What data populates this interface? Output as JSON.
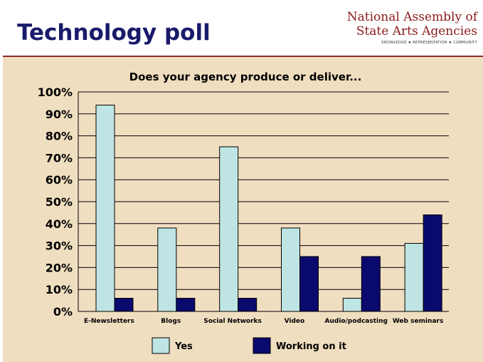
{
  "slide": {
    "title": "Technology poll",
    "logo_line1": "National Assembly of",
    "logo_line2": "State Arts Agencies",
    "logo_tagline": "KNOWLEDGE ♦ REPRESENTATION ♦ COMMUNITY"
  },
  "colors": {
    "yes": "#bfe4e4",
    "working": "#0a0a6e",
    "background": "#f0dec0",
    "title": "#1a1a6b",
    "logo": "#8b1a1a"
  },
  "chart_data": {
    "type": "bar",
    "title": "Does your agency produce or deliver...",
    "categories": [
      "E-Newsletters",
      "Blogs",
      "Social Networks",
      "Video",
      "Audio/podcasting",
      "Web seminars"
    ],
    "series": [
      {
        "name": "Yes",
        "values": [
          94,
          38,
          75,
          38,
          6,
          31
        ]
      },
      {
        "name": "Working on it",
        "values": [
          6,
          6,
          6,
          25,
          25,
          44
        ]
      }
    ],
    "y_ticks": [
      "0%",
      "10%",
      "20%",
      "30%",
      "40%",
      "50%",
      "60%",
      "70%",
      "80%",
      "90%",
      "100%"
    ],
    "ylim": [
      0,
      100
    ],
    "grid": true,
    "legend_position": "bottom"
  }
}
